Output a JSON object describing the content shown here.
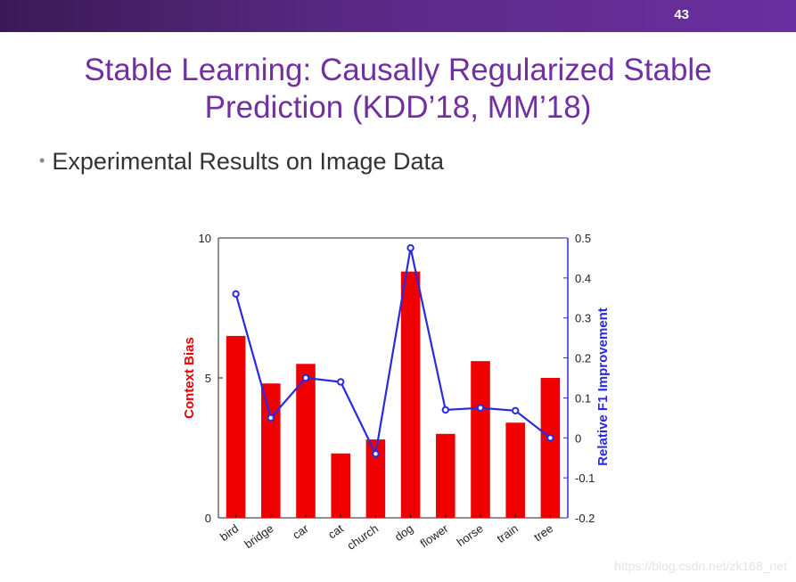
{
  "slide": {
    "number": "43",
    "title_line1": "Stable Learning: Causally Regularized Stable",
    "title_line2": "Prediction (KDD’18, MM’18)",
    "bullet": "Experimental Results on Image Data",
    "watermark": "https://blog.csdn.net/zk168_net"
  },
  "chart_data": {
    "type": "bar",
    "categories": [
      "bird",
      "bridge",
      "car",
      "cat",
      "church",
      "dog",
      "flower",
      "horse",
      "train",
      "tree"
    ],
    "series": [
      {
        "name": "Context Bias",
        "type": "bar",
        "axis": "left",
        "color": "#ee0000",
        "values": [
          6.5,
          4.8,
          5.5,
          2.3,
          2.8,
          8.8,
          3.0,
          5.6,
          3.4,
          5.0
        ]
      },
      {
        "name": "Relative F1 Improvement",
        "type": "line",
        "axis": "right",
        "color": "#2a2ae0",
        "values": [
          0.36,
          0.05,
          0.15,
          0.14,
          -0.04,
          0.475,
          0.07,
          0.075,
          0.068,
          0.0
        ]
      }
    ],
    "ylabel": "Context Bias",
    "y2label": "Relative F1 Improvement",
    "ylim": [
      0,
      10
    ],
    "y2lim": [
      -0.2,
      0.5
    ],
    "yticks": [
      "0",
      "5",
      "10"
    ],
    "y2ticks": [
      "-0.2",
      "-0.1",
      "0",
      "0.1",
      "0.2",
      "0.3",
      "0.4",
      "0.5"
    ],
    "ylabel_color": "#ee0000",
    "y2label_color": "#2a2ae0"
  }
}
